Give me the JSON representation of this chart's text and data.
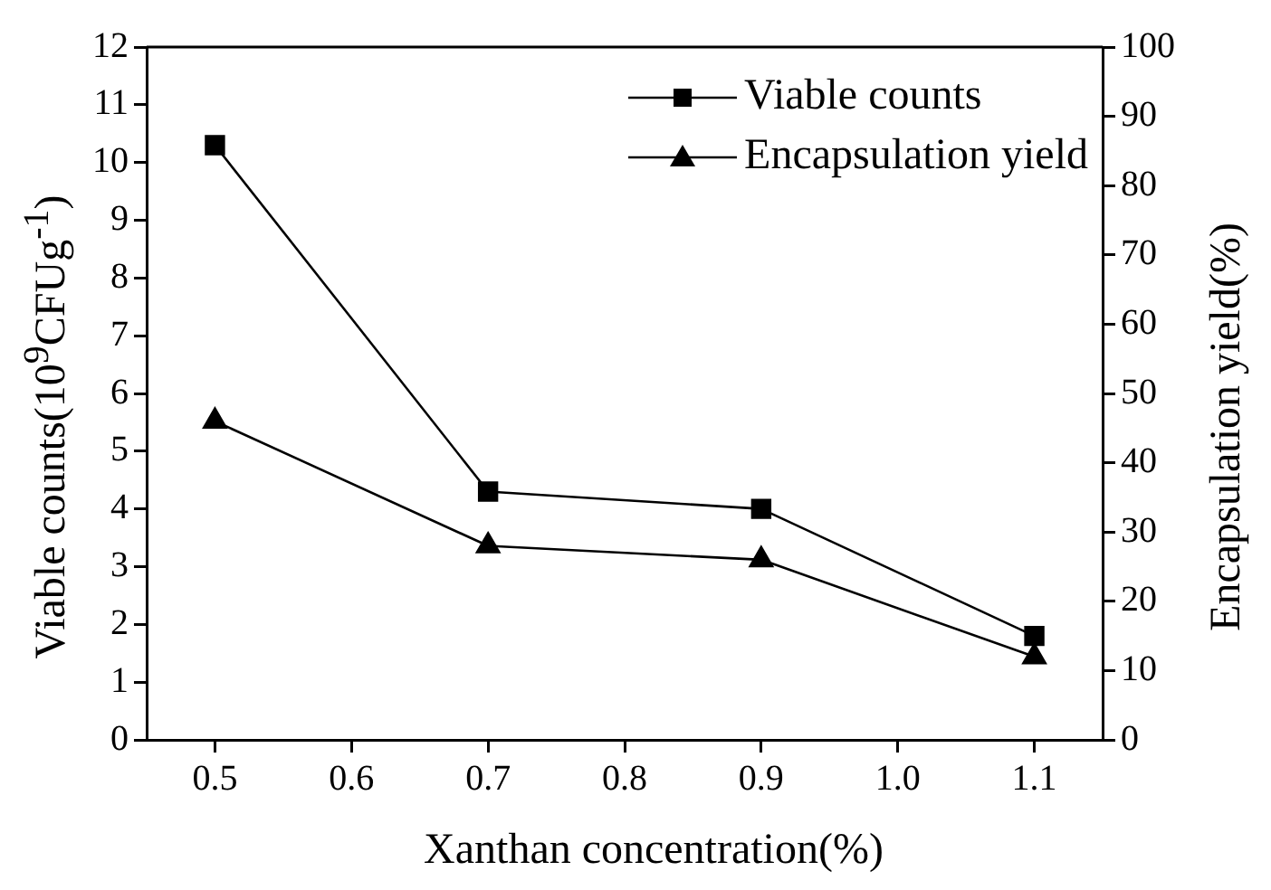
{
  "chart_data": {
    "type": "line",
    "xlabel": "Xanthan concentration(%)",
    "ylabel": "Viable counts(10$^{9}$CFUg$^{-1}$)",
    "y2label": "Encapsulation yield(%)",
    "x": [
      0.5,
      0.7,
      0.9,
      1.1
    ],
    "series": [
      {
        "name": "Viable counts",
        "color": "#000000",
        "marker": "square",
        "values": [
          10.3,
          4.3,
          4.0,
          1.8
        ]
      },
      {
        "name": "Encapsulation yield",
        "color": "#000000",
        "marker": "triangle",
        "axis": "y2",
        "values": [
          46,
          28,
          26,
          12
        ]
      }
    ],
    "xlim": [
      0.45,
      1.15
    ],
    "xticks": [
      0.5,
      0.6,
      0.7,
      0.8,
      0.9,
      {
        "value": 1,
        "label": "1.0"
      },
      1.1
    ],
    "ylim": [
      0,
      12
    ],
    "yticks": [
      0,
      1,
      2,
      3,
      4,
      5,
      6,
      7,
      8,
      9,
      10,
      11,
      12
    ],
    "y2lim": [
      0,
      100
    ],
    "y2ticks": [
      0,
      10,
      20,
      30,
      40,
      50,
      60,
      70,
      80,
      90,
      100
    ],
    "legend": "top right",
    "line_style": "solid"
  }
}
